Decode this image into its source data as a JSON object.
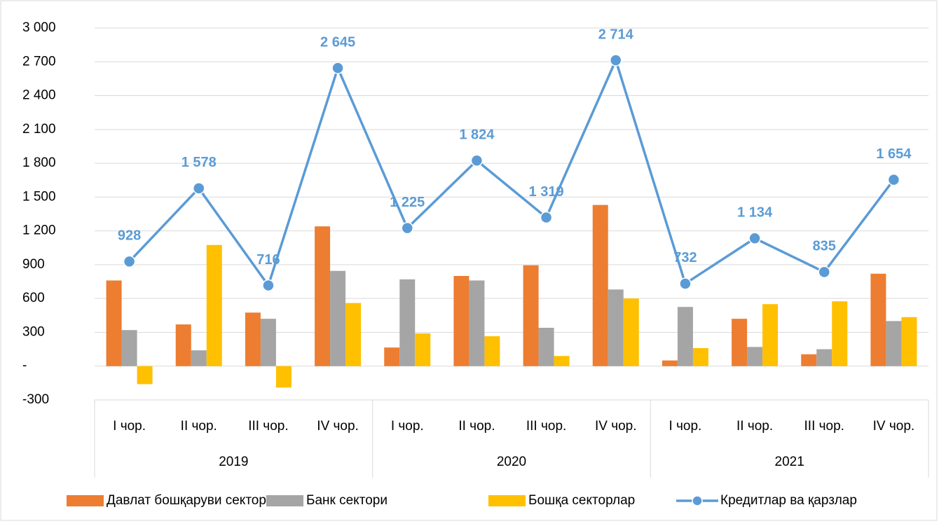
{
  "chart_data": {
    "type": "bar",
    "categories": [
      "I чор.",
      "II чор.",
      "III чор.",
      "IV чор.",
      "I чор.",
      "II чор.",
      "III чор.",
      "IV чор.",
      "I чор.",
      "II чор.",
      "III чор.",
      "IV чор."
    ],
    "years": [
      "2019",
      "2020",
      "2021"
    ],
    "series": [
      {
        "name": "Давлат бошқаруви сектори",
        "type": "bar",
        "color": "#ed7d31",
        "values": [
          760,
          370,
          475,
          1240,
          165,
          800,
          895,
          1430,
          50,
          420,
          105,
          820
        ]
      },
      {
        "name": "Банк сектори",
        "type": "bar",
        "color": "#a5a5a5",
        "values": [
          320,
          140,
          420,
          845,
          770,
          760,
          340,
          680,
          525,
          170,
          150,
          400
        ]
      },
      {
        "name": "Бошқа секторлар",
        "type": "bar",
        "color": "#ffc000",
        "values": [
          -160,
          1075,
          -190,
          560,
          290,
          265,
          90,
          600,
          160,
          550,
          575,
          435
        ]
      },
      {
        "name": "Кредитлар ва қарзлар",
        "type": "line",
        "color": "#5b9bd5",
        "values": [
          928,
          1578,
          716,
          2645,
          1225,
          1824,
          1319,
          2714,
          732,
          1134,
          835,
          1654
        ],
        "value_labels": [
          "928",
          "1 578",
          "716",
          "2 645",
          "1 225",
          "1 824",
          "1 319",
          "2 714",
          "732",
          "1 134",
          "835",
          "1 654"
        ]
      }
    ],
    "ylim": [
      -300,
      3000
    ],
    "yticks": [
      -300,
      {
        "value": 0,
        "label": "-"
      },
      300,
      600,
      900,
      {
        "value": 1200,
        "label": "1 200"
      },
      {
        "value": 1500,
        "label": "1 500"
      },
      {
        "value": 1800,
        "label": "1 800"
      },
      {
        "value": 2100,
        "label": "2 100"
      },
      {
        "value": 2400,
        "label": "2 400"
      },
      {
        "value": 2700,
        "label": "2 700"
      },
      {
        "value": 3000,
        "label": "3 000"
      }
    ],
    "grid": true,
    "legend": "bottom"
  }
}
